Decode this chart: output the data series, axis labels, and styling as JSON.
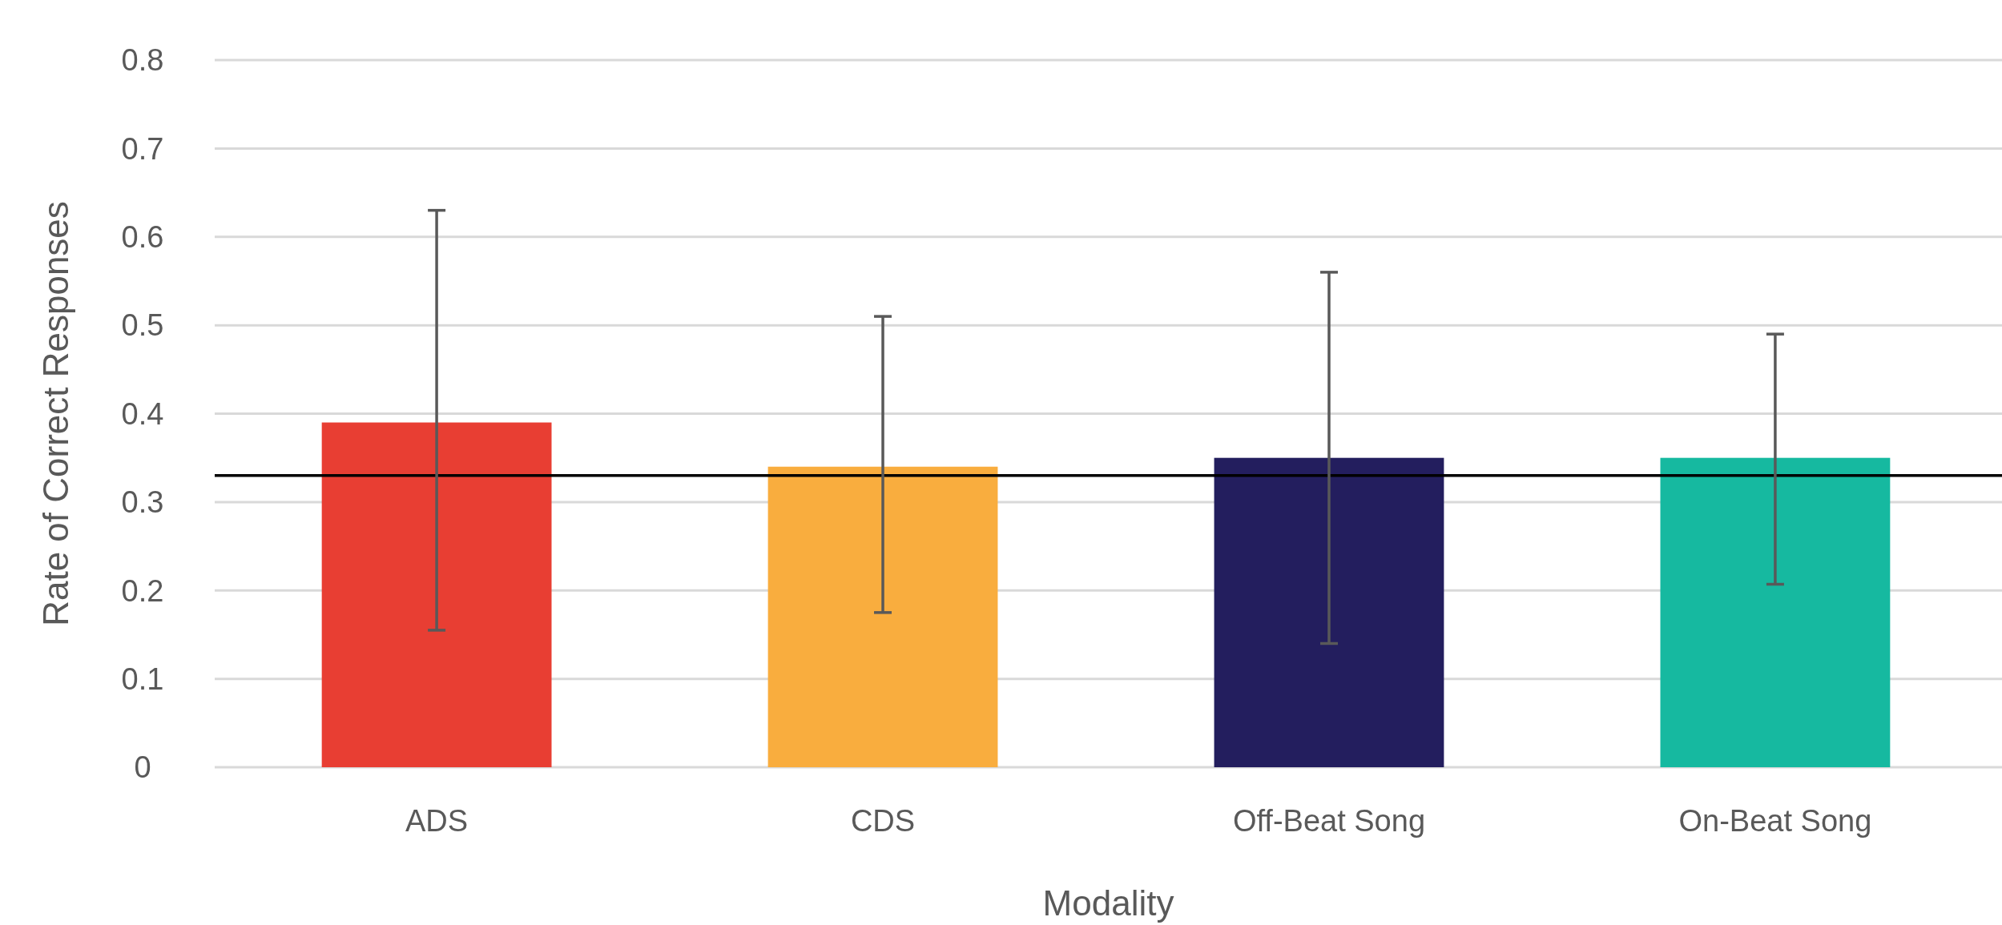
{
  "chart_data": {
    "type": "bar",
    "xlabel": "Modality",
    "ylabel": "Rate of Correct Responses",
    "categories": [
      "ADS",
      "CDS",
      "Off-Beat Song",
      "On-Beat Song"
    ],
    "values": [
      0.39,
      0.34,
      0.35,
      0.35
    ],
    "colors": [
      "#e83e33",
      "#f9ad3e",
      "#231e5e",
      "#16b9a0"
    ],
    "errors": [
      [
        0.155,
        0.63
      ],
      [
        0.175,
        0.51
      ],
      [
        0.14,
        0.56
      ],
      [
        0.207,
        0.49
      ]
    ],
    "ylim": [
      0,
      0.8
    ],
    "yticks": [
      0,
      0.1,
      0.2,
      0.3,
      0.4,
      0.5,
      0.6,
      0.7,
      0.8
    ],
    "grid": "y",
    "ref_lines": [
      {
        "axis": "y",
        "value": 0.33,
        "color": "#000000"
      }
    ]
  }
}
